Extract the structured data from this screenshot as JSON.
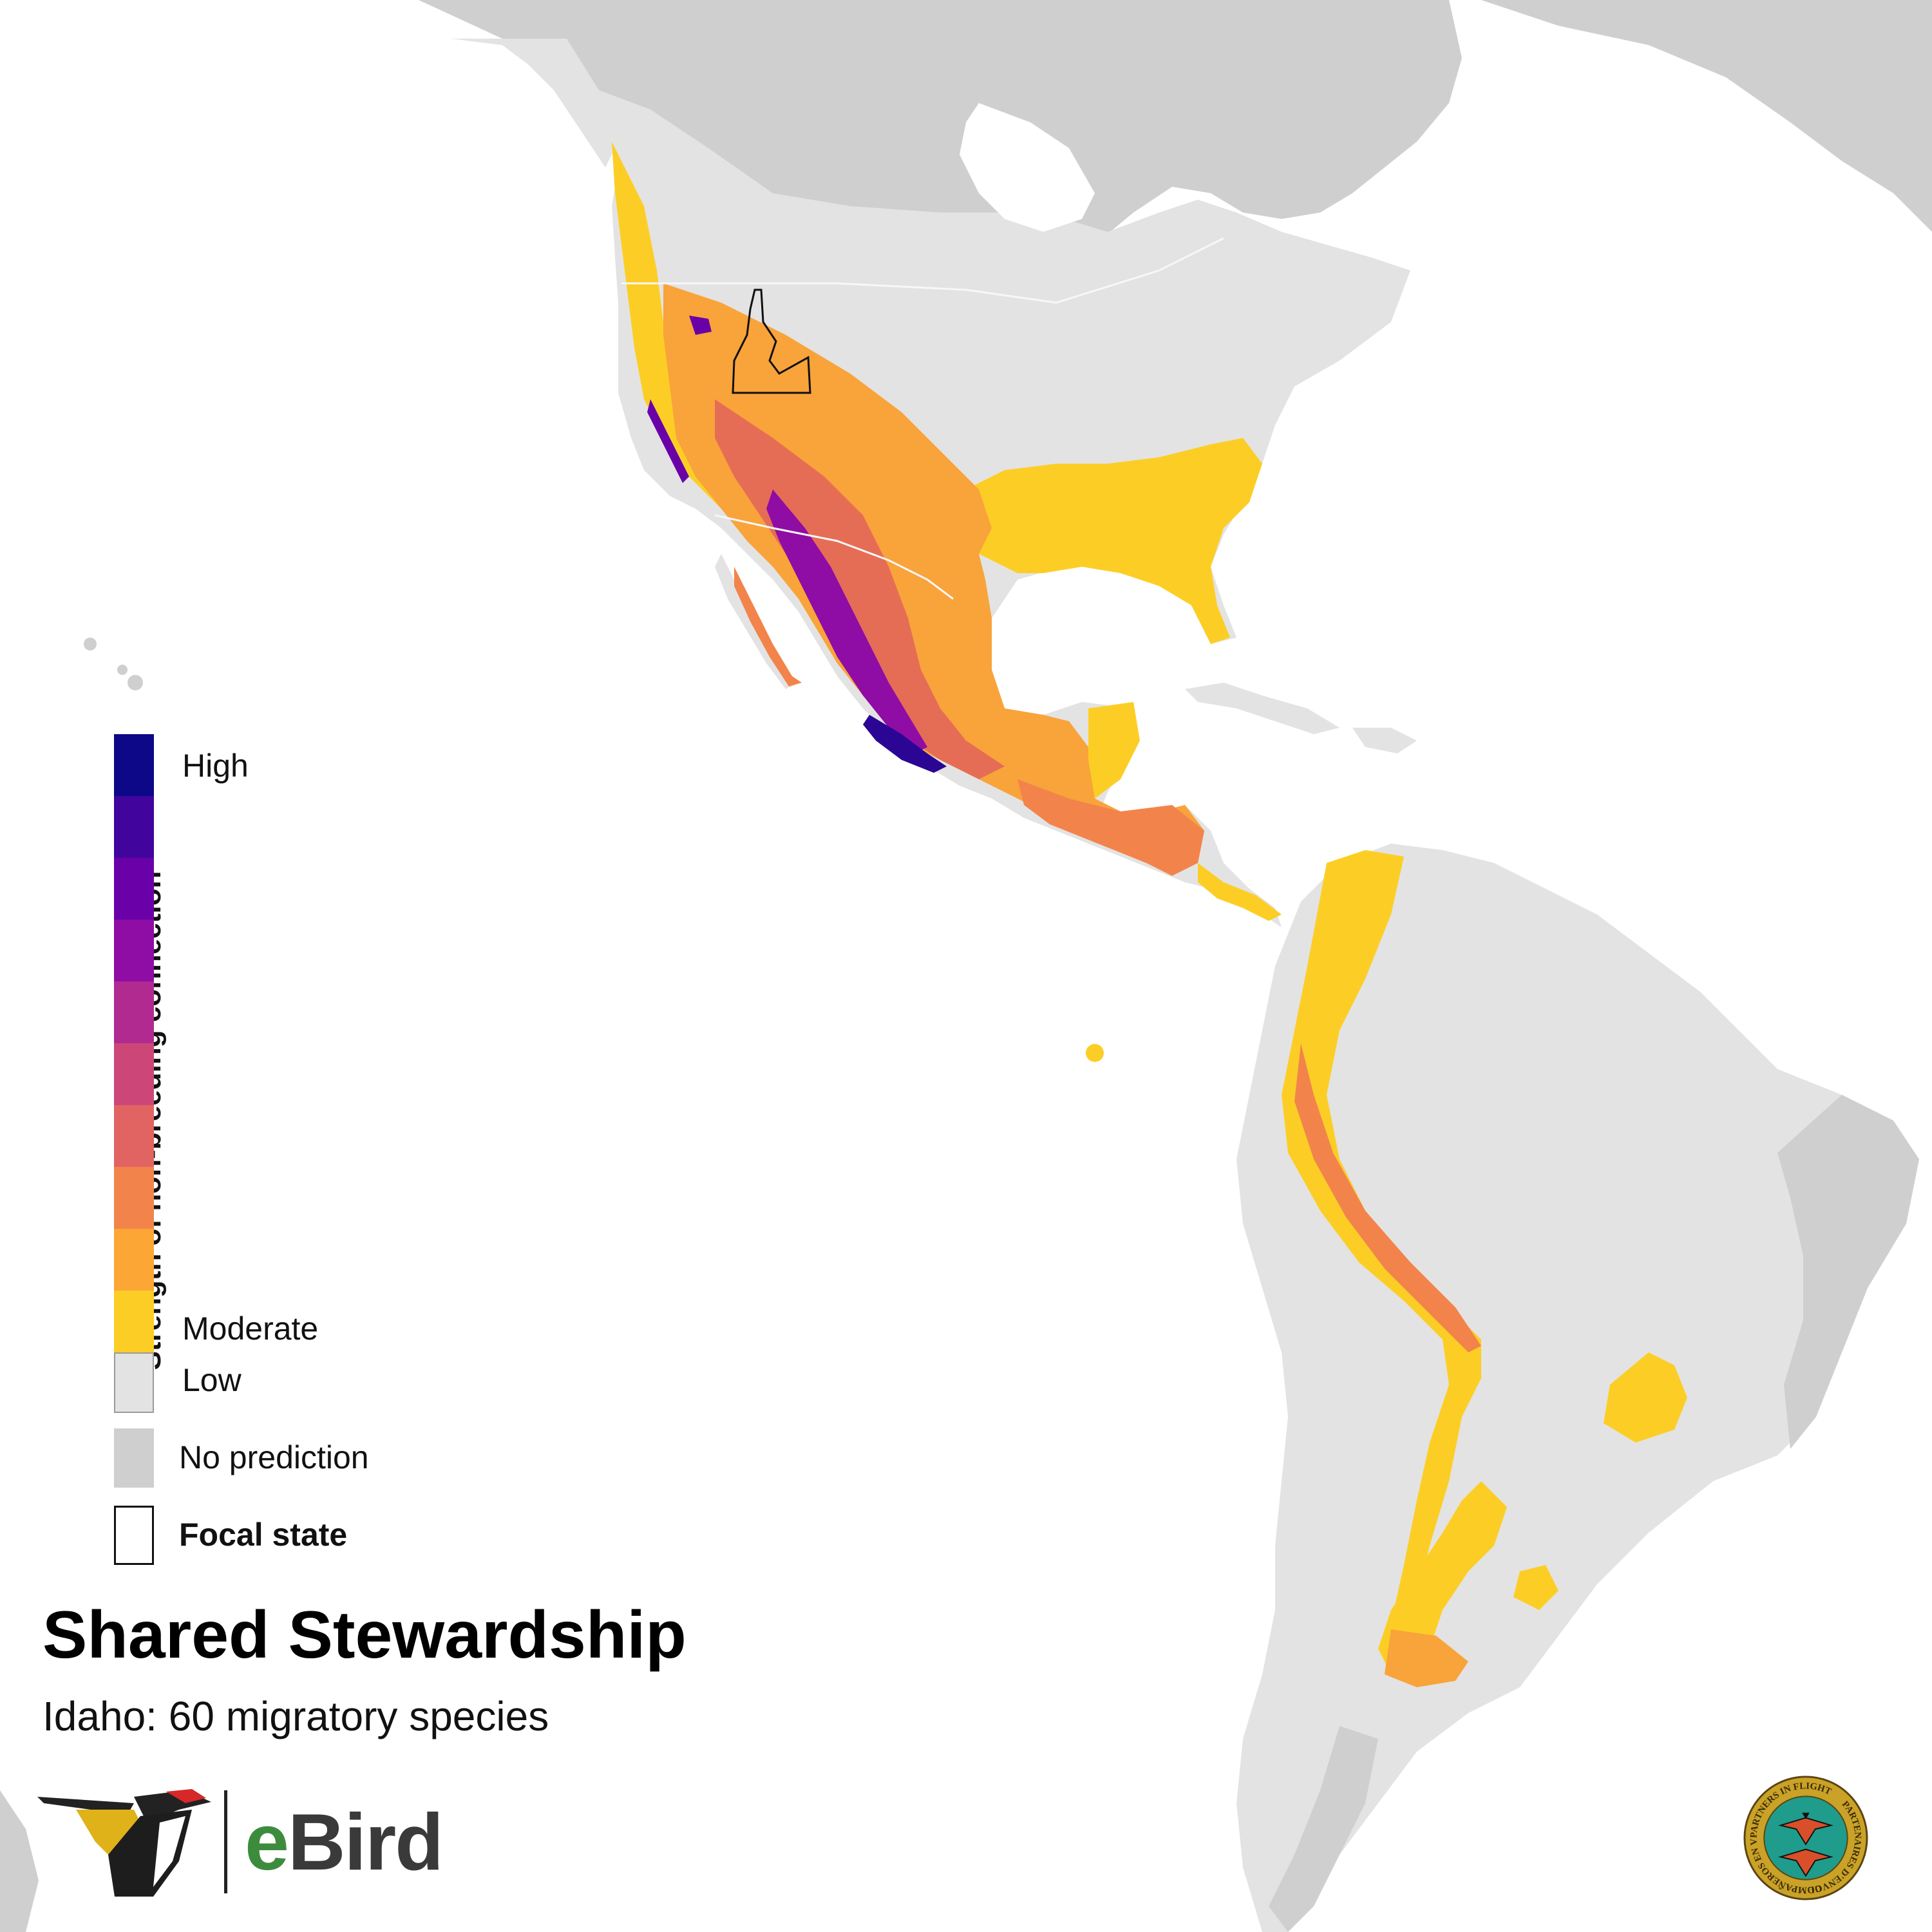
{
  "title": "Shared Stewardship",
  "subtitle": "Idaho: 60 migratory species",
  "legend": {
    "axis_label": "Strength of non-breeding connection",
    "high_label": "High",
    "moderate_label": "Moderate",
    "low_label": "Low",
    "no_prediction_label": "No prediction",
    "focal_state_label": "Focal state",
    "ramp_colors": [
      "#0d0887",
      "#41049d",
      "#6a00a8",
      "#8f0da4",
      "#b12a90",
      "#cc4778",
      "#e16462",
      "#f2844b",
      "#fca636",
      "#fcce25"
    ],
    "low_color": "#e3e3e3",
    "no_prediction_color": "#cfcfcf"
  },
  "map_colors": {
    "ocean": "#ffffff",
    "land_low": "#e3e3e3",
    "no_prediction": "#cfcfcf",
    "borders": "#f7f7f7",
    "focal_outline": "#111111"
  },
  "branding": {
    "ebird_e": "e",
    "ebird_rest": "Bird",
    "ebird_green": "#3d8c3d",
    "pif_seal_texts": [
      "PARTNERS IN FLIGHT",
      "PARTENAIRES D'ENVOL",
      "COMPAÑEROS EN VUELO"
    ],
    "seal_teal": "#1f9c8c",
    "seal_gold": "#c9a227"
  }
}
